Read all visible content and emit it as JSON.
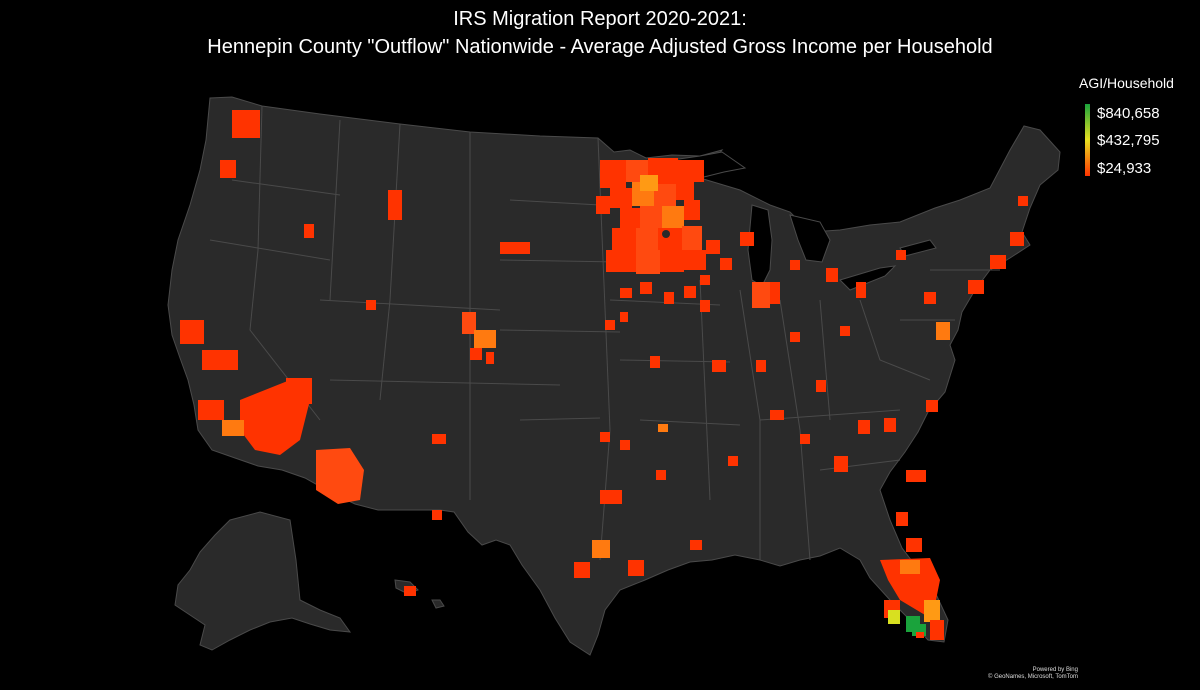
{
  "title": {
    "line1": "IRS Migration Report 2020-2021:",
    "line2": "Hennepin County \"Outflow\" Nationwide - Average Adjusted Gross Income per Household"
  },
  "legend": {
    "title": "AGI/Household",
    "max_label": "$840,658",
    "mid_label": "$432,795",
    "min_label": "$24,933",
    "max_value": 840658,
    "mid_value": 432795,
    "min_value": 24933,
    "color_max": "#1aa33c",
    "color_mid": "#e8e020",
    "color_min": "#ff3300"
  },
  "attribution": {
    "line1": "Powered by Bing",
    "line2": "© GeoNames, Microsoft, TomTom"
  },
  "colors": {
    "background": "#000000",
    "land": "#2a2a2a",
    "border": "#555555",
    "county_low": "#ff3300",
    "county_mid": "#ff7a10",
    "county_orange": "#ff9a14",
    "county_high": "#1aa33c",
    "county_yellow": "#d8e020"
  }
}
